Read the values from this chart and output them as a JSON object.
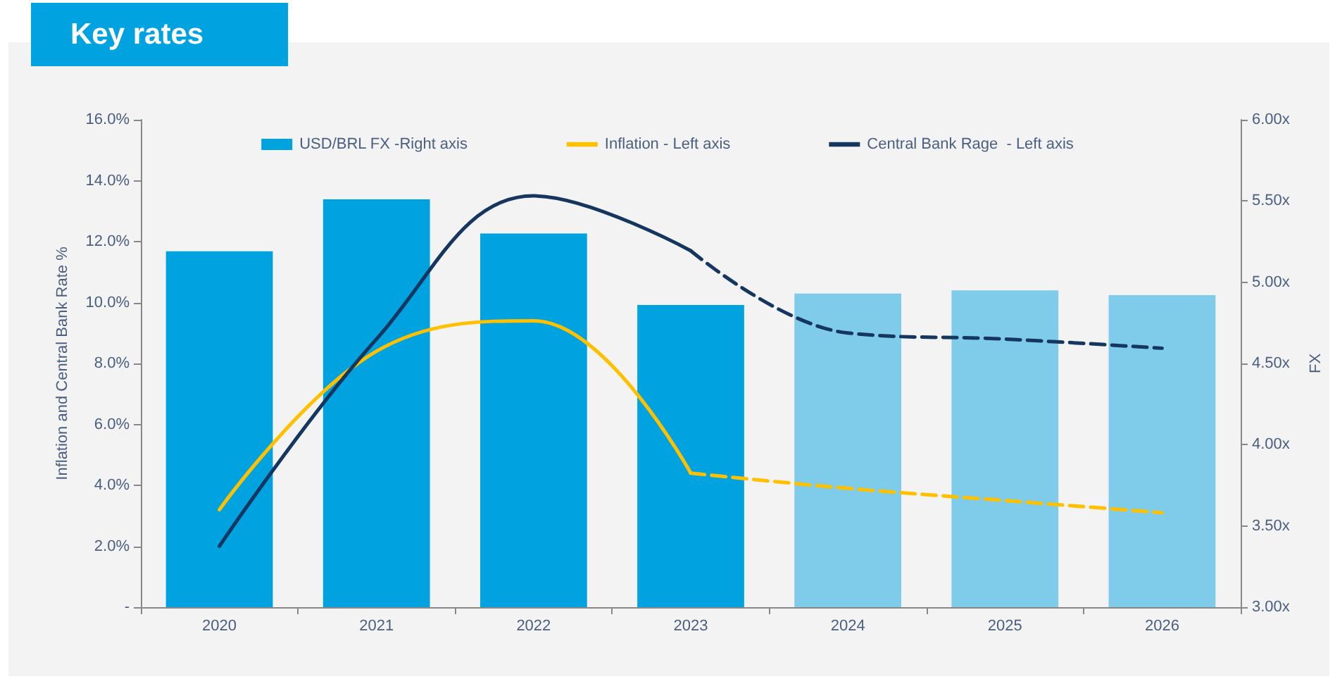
{
  "chart_data": {
    "type": "bar",
    "title": "Key rates",
    "ylabel": "Inflation and Central Bank Rate %",
    "y2label": "FX",
    "categories": [
      "2020",
      "2021",
      "2022",
      "2023",
      "2024",
      "2025",
      "2026"
    ],
    "series": [
      {
        "name": "USD/BRL FX -Right axis",
        "axis": "y2",
        "color": "#00a3e0",
        "colors": [
          "#00a3e0",
          "#00a3e0",
          "#00a3e0",
          "#00a3e0",
          "#7fcbea",
          "#7fcbea",
          "#7fcbea"
        ],
        "values": [
          5.19,
          5.51,
          5.3,
          4.86,
          4.93,
          4.95,
          4.92
        ]
      },
      {
        "type": "line",
        "name": "Inflation - Left axis",
        "color": "#ffc000",
        "line_style": "solid",
        "values": [
          3.2,
          8.4,
          9.4,
          4.4,
          null,
          null,
          null
        ]
      },
      {
        "type": "line",
        "color": "#ffc000",
        "line_style": "dashed",
        "values": [
          null,
          null,
          null,
          4.4,
          3.9,
          3.5,
          3.1
        ]
      },
      {
        "type": "line",
        "name": "Central Bank Rage  - Left axis",
        "color": "#14365f",
        "line_style": "solid",
        "values": [
          2.0,
          8.8,
          13.5,
          11.7,
          null,
          null,
          null
        ]
      },
      {
        "type": "line",
        "color": "#14365f",
        "line_style": "dashed",
        "values": [
          null,
          null,
          null,
          11.7,
          9.0,
          8.8,
          8.5
        ]
      }
    ],
    "ylim": [
      0,
      16
    ],
    "yticks": [
      {
        "value": 0,
        "label": "-"
      },
      {
        "value": 2,
        "label": "2.0%"
      },
      {
        "value": 4,
        "label": "4.0%"
      },
      {
        "value": 6,
        "label": "6.0%"
      },
      {
        "value": 8,
        "label": "8.0%"
      },
      {
        "value": 10,
        "label": "10.0%"
      },
      {
        "value": 12,
        "label": "12.0%"
      },
      {
        "value": 14,
        "label": "14.0%"
      },
      {
        "value": 16,
        "label": "16.0%"
      }
    ],
    "y2lim": [
      3,
      6
    ],
    "y2ticks": [
      {
        "value": 3,
        "label": "3.00x"
      },
      {
        "value": 3.5,
        "label": "3.50x"
      },
      {
        "value": 4,
        "label": "4.00x"
      },
      {
        "value": 4.5,
        "label": "4.50x"
      },
      {
        "value": 5,
        "label": "5.00x"
      },
      {
        "value": 5.5,
        "label": "5.50x"
      },
      {
        "value": 6,
        "label": "6.00x"
      }
    ],
    "legend": "top",
    "grid": false,
    "marker": "none"
  }
}
